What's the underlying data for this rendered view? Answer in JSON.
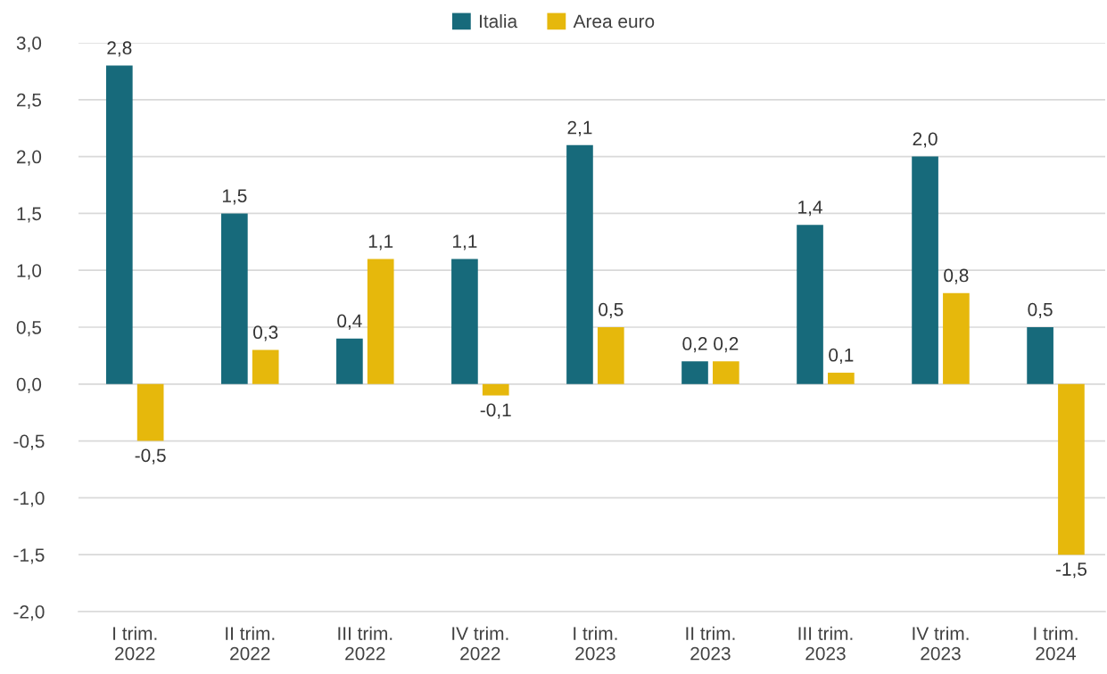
{
  "chart_data": {
    "type": "bar",
    "categories": [
      "I trim.\n2022",
      "II trim.\n2022",
      "III trim.\n2022",
      "IV trim.\n2022",
      "I trim.\n2023",
      "II trim.\n2023",
      "III trim.\n2023",
      "IV trim.\n2023",
      "I trim.\n2024"
    ],
    "series": [
      {
        "name": "Italia",
        "color": "#176a7b",
        "values": [
          2.8,
          1.5,
          0.4,
          1.1,
          2.1,
          0.2,
          1.4,
          2.0,
          0.5
        ],
        "value_labels": [
          "2,8",
          "1,5",
          "0,4",
          "1,1",
          "2,1",
          "0,2",
          "1,4",
          "2,0",
          "0,5"
        ]
      },
      {
        "name": "Area euro",
        "color": "#e6b80c",
        "values": [
          -0.5,
          0.3,
          1.1,
          -0.1,
          0.5,
          0.2,
          0.1,
          0.8,
          -1.5
        ],
        "value_labels": [
          "-0,5",
          "0,3",
          "1,1",
          "-0,1",
          "0,5",
          "0,2",
          "0,1",
          "0,8",
          "-1,5"
        ]
      }
    ],
    "ylim": [
      -2.0,
      3.0
    ],
    "yticks": [
      {
        "value": -2.0,
        "label": "-2,0"
      },
      {
        "value": -1.5,
        "label": "-1,5"
      },
      {
        "value": -1.0,
        "label": "-1,0"
      },
      {
        "value": -0.5,
        "label": "-0,5"
      },
      {
        "value": 0.0,
        "label": "0,0"
      },
      {
        "value": 0.5,
        "label": "0,5"
      },
      {
        "value": 1.0,
        "label": "1,0"
      },
      {
        "value": 1.5,
        "label": "1,5"
      },
      {
        "value": 2.0,
        "label": "2,0"
      },
      {
        "value": 2.5,
        "label": "2,5"
      },
      {
        "value": 3.0,
        "label": "3,0"
      }
    ],
    "grid": "y",
    "legend": "top"
  }
}
